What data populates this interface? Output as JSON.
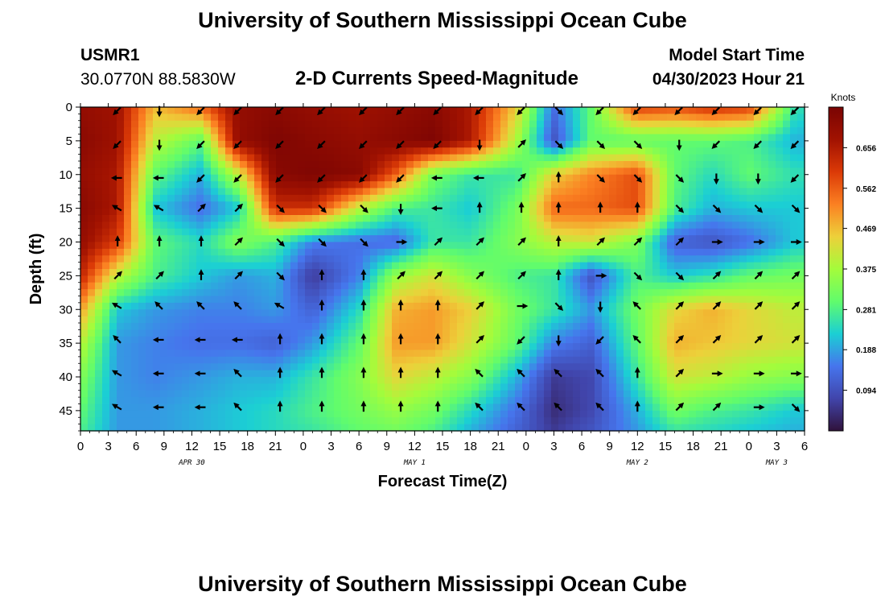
{
  "header": {
    "title": "University of Southern Mississippi Ocean Cube",
    "station_id": "USMR1",
    "coords": "30.0770N  88.5830W",
    "subtitle": "2-D Currents Speed-Magnitude",
    "model_start_label": "Model Start Time",
    "model_start_value": "04/30/2023 Hour 21"
  },
  "footer": {
    "title": "University of Southern Mississippi Ocean Cube"
  },
  "chart_data": {
    "type": "heatmap",
    "title": "2-D Currents Speed-Magnitude",
    "xlabel": "Forecast Time(Z)",
    "ylabel": "Depth (ft)",
    "x_tick_labels": [
      "0",
      "3",
      "6",
      "9",
      "12",
      "15",
      "18",
      "21",
      "0",
      "3",
      "6",
      "9",
      "12",
      "15",
      "18",
      "21",
      "0",
      "3",
      "6",
      "9",
      "12",
      "15",
      "18",
      "21",
      "0",
      "3",
      "6"
    ],
    "x_date_labels": [
      {
        "label": "APR 30",
        "hour": 12
      },
      {
        "label": "MAY 1",
        "hour": 36
      },
      {
        "label": "MAY 2",
        "hour": 60
      },
      {
        "label": "MAY 3",
        "hour": 75
      }
    ],
    "xlim_hours": [
      0,
      78
    ],
    "y_ticks": [
      0,
      5,
      10,
      15,
      20,
      25,
      30,
      35,
      40,
      45
    ],
    "ylim": [
      0,
      48
    ],
    "y_inverted": true,
    "colorbar": {
      "unit": "Knots",
      "ticks": [
        "0.656",
        "0.562",
        "0.469",
        "0.375",
        "0.281",
        "0.188",
        "0.094"
      ],
      "tick_values": [
        0.656,
        0.562,
        0.469,
        0.375,
        0.281,
        0.188,
        0.094
      ],
      "range": [
        0.0,
        0.75
      ],
      "colormap": "turbo"
    },
    "grid_hours": [
      0,
      4,
      8,
      13,
      17,
      21,
      25,
      30,
      34,
      38,
      42,
      47,
      51,
      55,
      60,
      64,
      68,
      72,
      77
    ],
    "grid_depths": [
      0,
      5,
      10,
      15,
      20,
      25,
      30,
      35,
      40,
      45,
      48
    ],
    "speed_knots": [
      [
        0.7,
        0.68,
        0.47,
        0.55,
        0.7,
        0.72,
        0.7,
        0.68,
        0.7,
        0.72,
        0.66,
        0.45,
        0.14,
        0.3,
        0.6,
        0.58,
        0.62,
        0.6,
        0.25
      ],
      [
        0.72,
        0.68,
        0.4,
        0.3,
        0.7,
        0.74,
        0.72,
        0.7,
        0.72,
        0.74,
        0.66,
        0.38,
        0.1,
        0.3,
        0.3,
        0.3,
        0.3,
        0.28,
        0.2
      ],
      [
        0.7,
        0.66,
        0.3,
        0.2,
        0.4,
        0.72,
        0.74,
        0.72,
        0.56,
        0.32,
        0.26,
        0.26,
        0.45,
        0.52,
        0.58,
        0.3,
        0.24,
        0.3,
        0.25
      ],
      [
        0.72,
        0.66,
        0.22,
        0.14,
        0.22,
        0.62,
        0.62,
        0.4,
        0.28,
        0.26,
        0.22,
        0.32,
        0.55,
        0.55,
        0.58,
        0.28,
        0.2,
        0.22,
        0.22
      ],
      [
        0.7,
        0.6,
        0.3,
        0.24,
        0.34,
        0.28,
        0.16,
        0.14,
        0.13,
        0.26,
        0.26,
        0.34,
        0.4,
        0.42,
        0.33,
        0.12,
        0.1,
        0.14,
        0.22
      ],
      [
        0.64,
        0.4,
        0.28,
        0.22,
        0.18,
        0.2,
        0.06,
        0.16,
        0.36,
        0.42,
        0.34,
        0.28,
        0.26,
        0.1,
        0.28,
        0.22,
        0.25,
        0.3,
        0.32
      ],
      [
        0.5,
        0.22,
        0.18,
        0.16,
        0.16,
        0.18,
        0.12,
        0.24,
        0.48,
        0.5,
        0.45,
        0.32,
        0.26,
        0.18,
        0.32,
        0.44,
        0.48,
        0.44,
        0.4
      ],
      [
        0.4,
        0.18,
        0.16,
        0.14,
        0.14,
        0.12,
        0.18,
        0.3,
        0.5,
        0.5,
        0.42,
        0.3,
        0.16,
        0.12,
        0.3,
        0.48,
        0.46,
        0.44,
        0.42
      ],
      [
        0.34,
        0.18,
        0.16,
        0.18,
        0.2,
        0.2,
        0.26,
        0.34,
        0.44,
        0.4,
        0.34,
        0.2,
        0.06,
        0.08,
        0.26,
        0.42,
        0.4,
        0.36,
        0.34
      ],
      [
        0.3,
        0.18,
        0.18,
        0.2,
        0.22,
        0.24,
        0.28,
        0.32,
        0.36,
        0.32,
        0.24,
        0.14,
        0.04,
        0.08,
        0.2,
        0.32,
        0.28,
        0.26,
        0.22
      ],
      [
        0.28,
        0.18,
        0.18,
        0.2,
        0.22,
        0.24,
        0.26,
        0.3,
        0.32,
        0.28,
        0.2,
        0.12,
        0.06,
        0.1,
        0.18,
        0.26,
        0.24,
        0.22,
        0.2
      ]
    ],
    "arrow_hours": [
      4,
      8.5,
      13,
      17,
      21.5,
      26,
      30.5,
      34.5,
      38.5,
      43,
      47.5,
      51.5,
      56,
      60,
      64.5,
      68.5,
      73,
      77
    ],
    "arrow_depths": [
      0.5,
      5.5,
      10.5,
      15,
      20,
      25,
      29.5,
      34.5,
      39.5,
      44.5
    ],
    "arrow_dir_deg": [
      [
        225,
        180,
        225,
        225,
        225,
        225,
        225,
        225,
        225,
        225,
        225,
        135,
        225,
        225,
        225,
        225,
        225,
        225
      ],
      [
        225,
        180,
        225,
        225,
        225,
        225,
        225,
        225,
        225,
        180,
        45,
        135,
        135,
        135,
        180,
        225,
        225,
        225
      ],
      [
        270,
        270,
        225,
        225,
        225,
        225,
        225,
        225,
        270,
        270,
        45,
        0,
        135,
        135,
        135,
        180,
        180,
        225
      ],
      [
        300,
        300,
        45,
        45,
        135,
        135,
        135,
        180,
        270,
        0,
        0,
        0,
        0,
        0,
        135,
        135,
        135,
        135
      ],
      [
        0,
        0,
        0,
        45,
        135,
        135,
        135,
        90,
        45,
        45,
        45,
        0,
        45,
        45,
        45,
        90,
        90,
        90
      ],
      [
        45,
        45,
        0,
        45,
        135,
        0,
        0,
        45,
        45,
        45,
        45,
        0,
        90,
        135,
        135,
        45,
        45,
        45
      ],
      [
        300,
        315,
        315,
        315,
        300,
        0,
        0,
        0,
        0,
        45,
        90,
        135,
        180,
        315,
        45,
        45,
        45,
        45
      ],
      [
        315,
        270,
        270,
        270,
        0,
        0,
        0,
        0,
        0,
        45,
        225,
        180,
        225,
        315,
        45,
        45,
        45,
        45
      ],
      [
        300,
        270,
        270,
        315,
        0,
        0,
        0,
        0,
        0,
        315,
        315,
        315,
        315,
        0,
        45,
        90,
        90,
        90
      ],
      [
        300,
        270,
        270,
        315,
        0,
        0,
        0,
        0,
        0,
        315,
        315,
        315,
        315,
        0,
        45,
        45,
        90,
        135
      ]
    ],
    "grid": false,
    "legend": "right"
  }
}
